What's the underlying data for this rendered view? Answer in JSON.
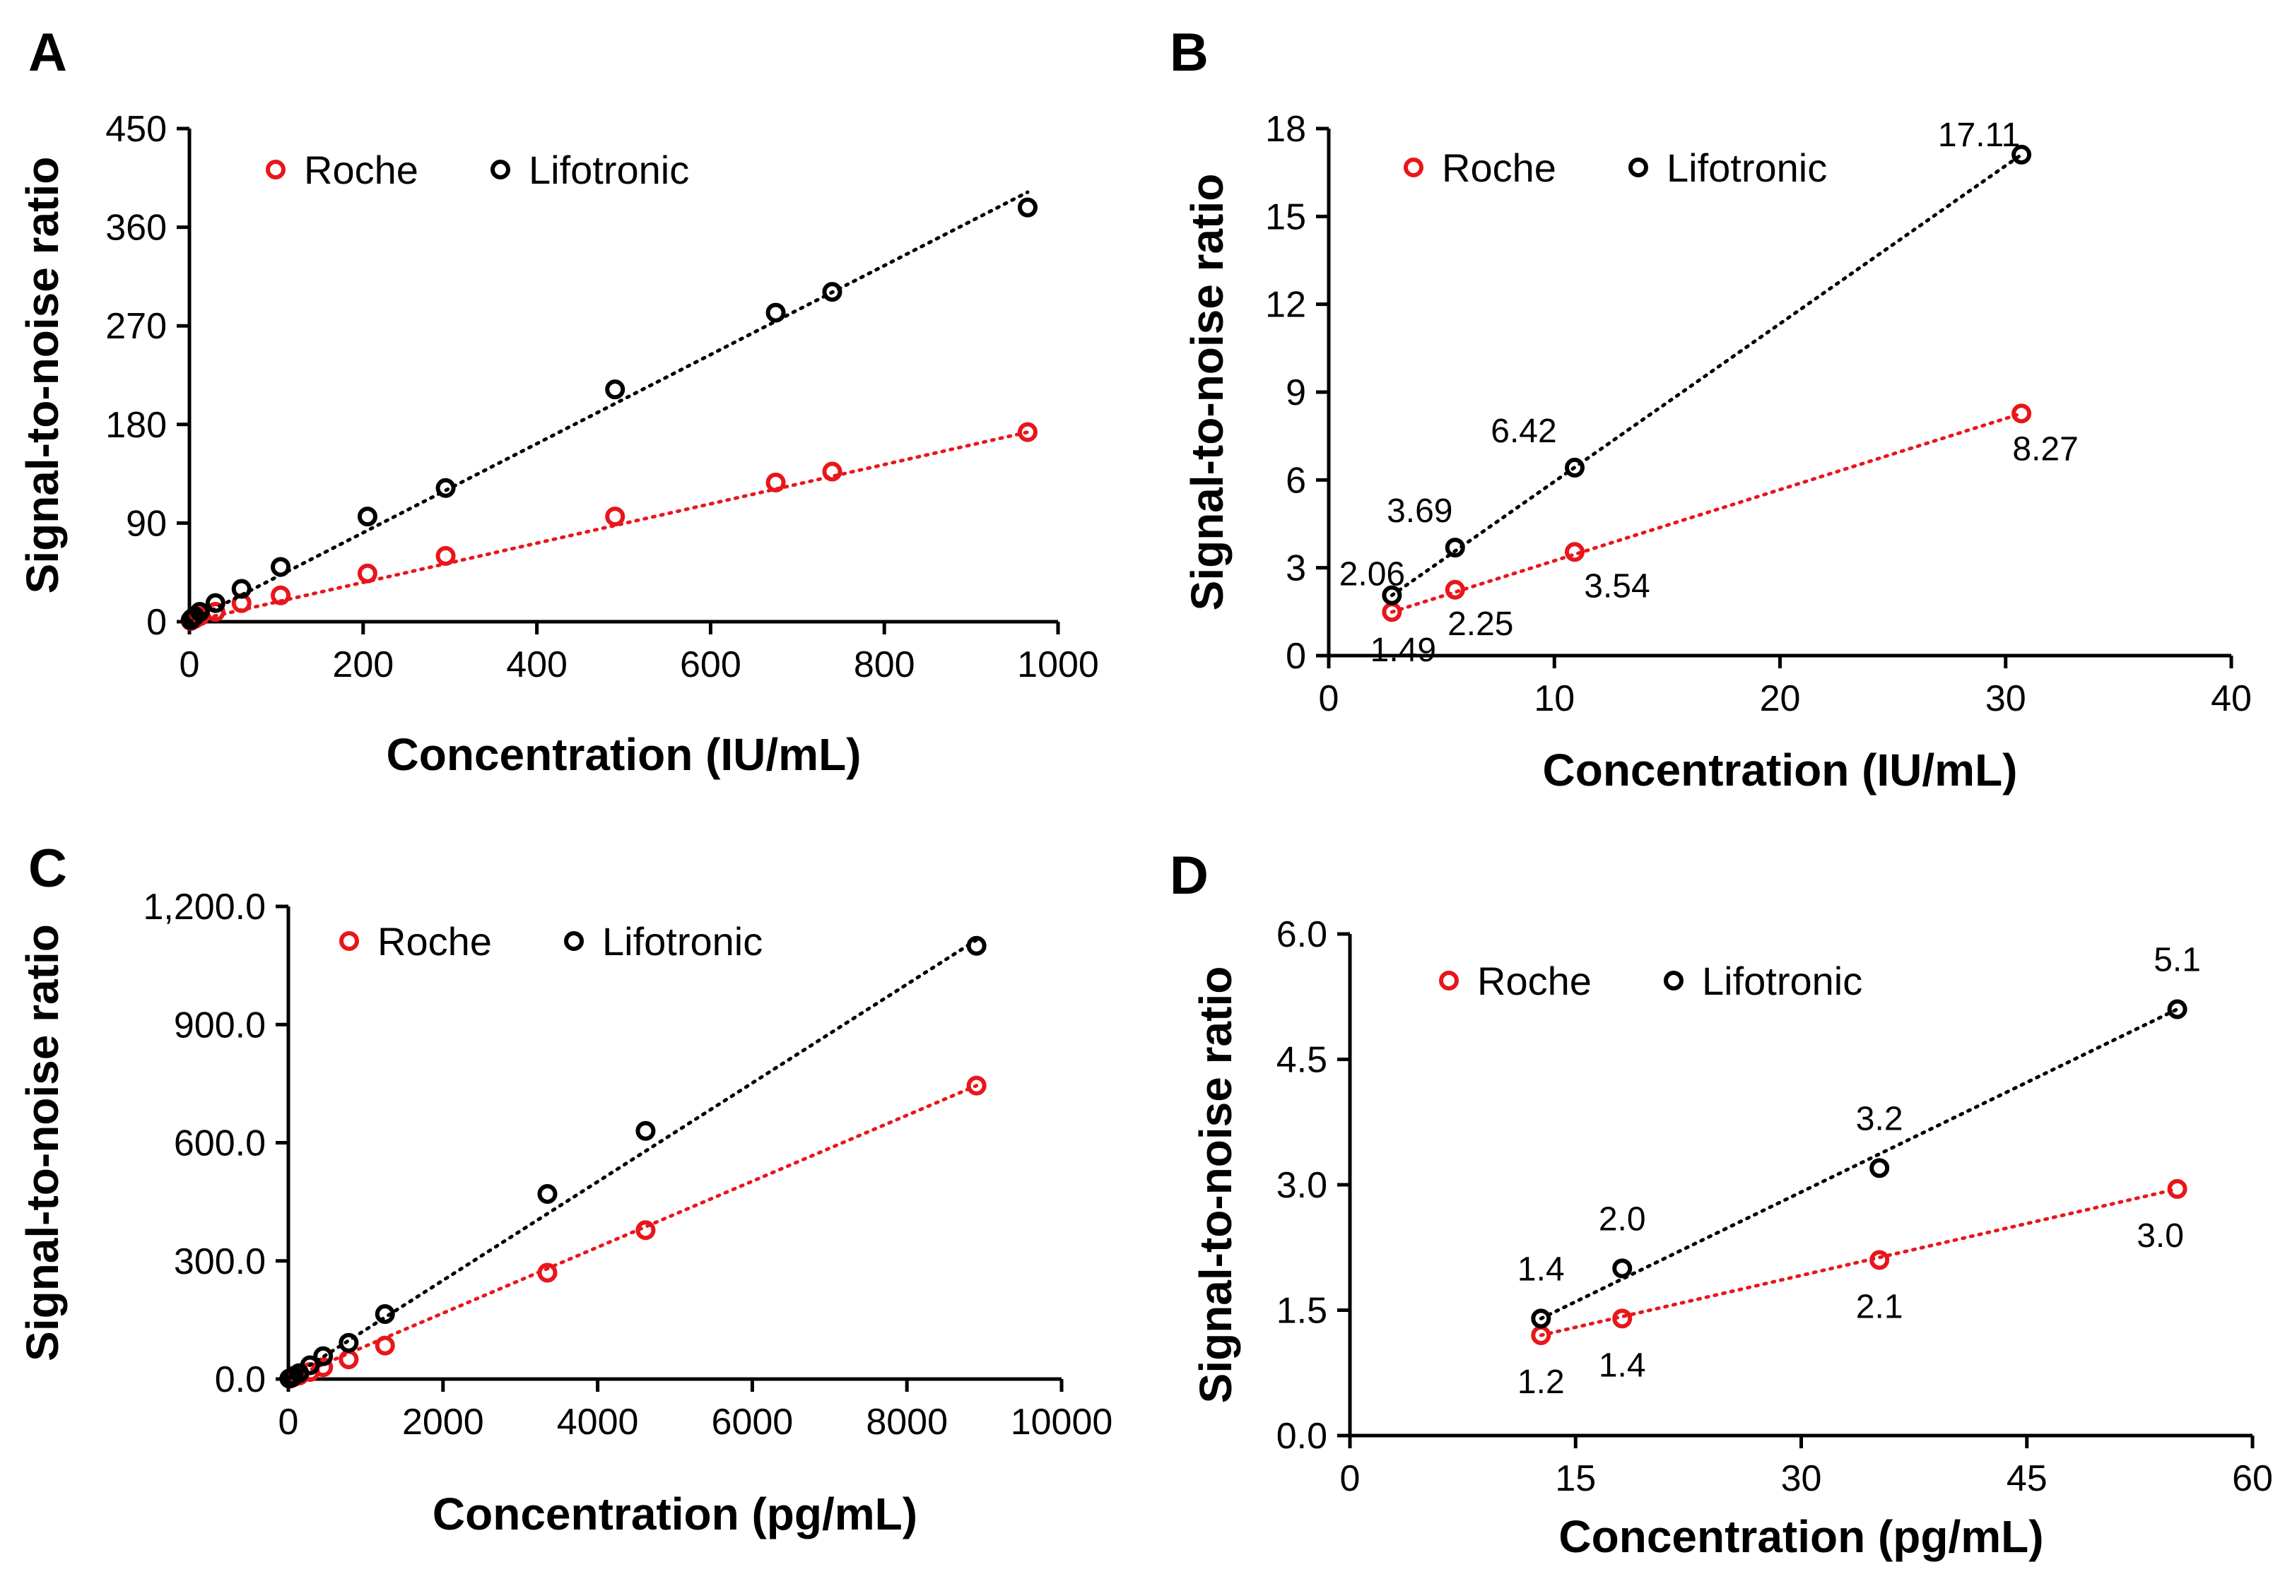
{
  "colors": {
    "roche": "#e8161b",
    "lifotronic": "#000000"
  },
  "chart_data": [
    {
      "id": "A",
      "type": "scatter",
      "panel_label": "A",
      "title": "",
      "xlabel": "Concentration (IU/mL)",
      "ylabel": "Signal-to-noise ratio",
      "xlim": [
        0,
        1000
      ],
      "ylim": [
        0,
        450
      ],
      "xticks": [
        0,
        200,
        400,
        600,
        800,
        1000
      ],
      "xtick_labels": [
        "0",
        "200",
        "400",
        "600",
        "800",
        "1000"
      ],
      "yticks": [
        0,
        90,
        180,
        270,
        360,
        450
      ],
      "ytick_labels": [
        "0",
        "90",
        "180",
        "270",
        "360",
        "450"
      ],
      "legend": {
        "position": "top-left",
        "entries": [
          "Roche",
          "Lifotronic"
        ]
      },
      "series": [
        {
          "name": "Roche",
          "color": "#e8161b",
          "x": [
            1.5,
            3,
            6,
            12,
            30,
            60,
            105,
            205,
            295,
            490,
            675,
            740,
            965
          ],
          "y": [
            0.7,
            1.5,
            2.5,
            5,
            9,
            17,
            24,
            44,
            60,
            96,
            127,
            137,
            173
          ],
          "trend": {
            "x": [
              0,
              965
            ],
            "y": [
              0,
              173
            ]
          },
          "labels": []
        },
        {
          "name": "Lifotronic",
          "color": "#000000",
          "x": [
            1.5,
            3,
            6,
            12,
            30,
            60,
            105,
            205,
            295,
            490,
            675,
            740,
            965
          ],
          "y": [
            1.5,
            3,
            5,
            9,
            17,
            30,
            50,
            96,
            122,
            212,
            282,
            301,
            378
          ],
          "trend": {
            "x": [
              0,
              965
            ],
            "y": [
              0,
              392
            ]
          },
          "labels": []
        }
      ]
    },
    {
      "id": "B",
      "type": "scatter",
      "panel_label": "B",
      "title": "",
      "xlabel": "Concentration (IU/mL)",
      "ylabel": "Signal-to-noise ratio",
      "xlim": [
        0,
        40
      ],
      "ylim": [
        0,
        18
      ],
      "xticks": [
        0,
        10,
        20,
        30,
        40
      ],
      "xtick_labels": [
        "0",
        "10",
        "20",
        "30",
        "40"
      ],
      "yticks": [
        0,
        3,
        6,
        9,
        12,
        15,
        18
      ],
      "ytick_labels": [
        "0",
        "3",
        "6",
        "9",
        "12",
        "15",
        "18"
      ],
      "legend": {
        "position": "top-left",
        "entries": [
          "Roche",
          "Lifotronic"
        ]
      },
      "series": [
        {
          "name": "Roche",
          "color": "#e8161b",
          "x": [
            2.8,
            5.6,
            10.9,
            30.7
          ],
          "y": [
            1.49,
            2.25,
            3.54,
            8.27
          ],
          "trend": {
            "x": [
              2.8,
              30.7
            ],
            "y": [
              1.49,
              8.27
            ]
          },
          "labels": [
            "1.49",
            "2.25",
            "3.54",
            "8.27"
          ]
        },
        {
          "name": "Lifotronic",
          "color": "#000000",
          "x": [
            2.8,
            5.6,
            10.9,
            30.7
          ],
          "y": [
            2.06,
            3.69,
            6.42,
            17.11
          ],
          "trend": {
            "x": [
              2.8,
              30.7
            ],
            "y": [
              2.06,
              17.11
            ]
          },
          "labels": [
            "2.06",
            "3.69",
            "6.42",
            "17.11"
          ]
        }
      ]
    },
    {
      "id": "C",
      "type": "scatter",
      "panel_label": "C",
      "title": "",
      "xlabel": "Concentration (pg/mL)",
      "ylabel": "Signal-to-noise ratio",
      "xlim": [
        0,
        10000
      ],
      "ylim": [
        0,
        1200
      ],
      "xticks": [
        0,
        2000,
        4000,
        6000,
        8000,
        10000
      ],
      "xtick_labels": [
        "0",
        "2000",
        "4000",
        "6000",
        "8000",
        "10000"
      ],
      "yticks": [
        0,
        300,
        600,
        900,
        1200
      ],
      "ytick_labels": [
        "0.0",
        "300.0",
        "600.0",
        "900.0",
        "1,200.0"
      ],
      "legend": {
        "position": "top-left",
        "entries": [
          "Roche",
          "Lifotronic"
        ]
      },
      "series": [
        {
          "name": "Roche",
          "color": "#e8161b",
          "x": [
            13,
            35,
            70,
            140,
            280,
            450,
            780,
            1250,
            3350,
            4620,
            8900
          ],
          "y": [
            1.2,
            2.1,
            5,
            9,
            18,
            30,
            50,
            85,
            270,
            378,
            745
          ],
          "trend": {
            "x": [
              0,
              8900
            ],
            "y": [
              0,
              745
            ]
          },
          "labels": []
        },
        {
          "name": "Lifotronic",
          "color": "#000000",
          "x": [
            13,
            35,
            70,
            140,
            280,
            450,
            780,
            1250,
            3350,
            4620,
            8900
          ],
          "y": [
            1.4,
            3.2,
            8,
            15,
            35,
            58,
            92,
            165,
            470,
            630,
            1100
          ],
          "trend": {
            "x": [
              0,
              8900
            ],
            "y": [
              0,
              1115
            ]
          },
          "labels": []
        }
      ]
    },
    {
      "id": "D",
      "type": "scatter",
      "panel_label": "D",
      "title": "",
      "xlabel": "Concentration (pg/mL)",
      "ylabel": "Signal-to-noise ratio",
      "xlim": [
        0,
        60
      ],
      "ylim": [
        0,
        6
      ],
      "xticks": [
        0,
        15,
        30,
        45,
        60
      ],
      "xtick_labels": [
        "0",
        "15",
        "30",
        "45",
        "60"
      ],
      "yticks": [
        0,
        1.5,
        3,
        4.5,
        6
      ],
      "ytick_labels": [
        "0.0",
        "1.5",
        "3.0",
        "4.5",
        "6.0"
      ],
      "legend": {
        "position": "top-left",
        "entries": [
          "Roche",
          "Lifotronic"
        ]
      },
      "series": [
        {
          "name": "Roche",
          "color": "#e8161b",
          "x": [
            12.7,
            18.1,
            35.2,
            55.0
          ],
          "y": [
            1.2,
            1.4,
            2.1,
            2.95
          ],
          "trend": {
            "x": [
              12.7,
              55.0
            ],
            "y": [
              1.2,
              2.95
            ]
          },
          "labels": [
            "1.2",
            "1.4",
            "2.1",
            "3.0"
          ]
        },
        {
          "name": "Lifotronic",
          "color": "#000000",
          "x": [
            12.7,
            18.1,
            35.2,
            55.0
          ],
          "y": [
            1.4,
            2.0,
            3.2,
            5.1
          ],
          "trend": {
            "x": [
              12.7,
              55.0
            ],
            "y": [
              1.4,
              5.1
            ]
          },
          "labels": [
            "1.4",
            "2.0",
            "3.2",
            "5.1"
          ]
        }
      ]
    }
  ]
}
